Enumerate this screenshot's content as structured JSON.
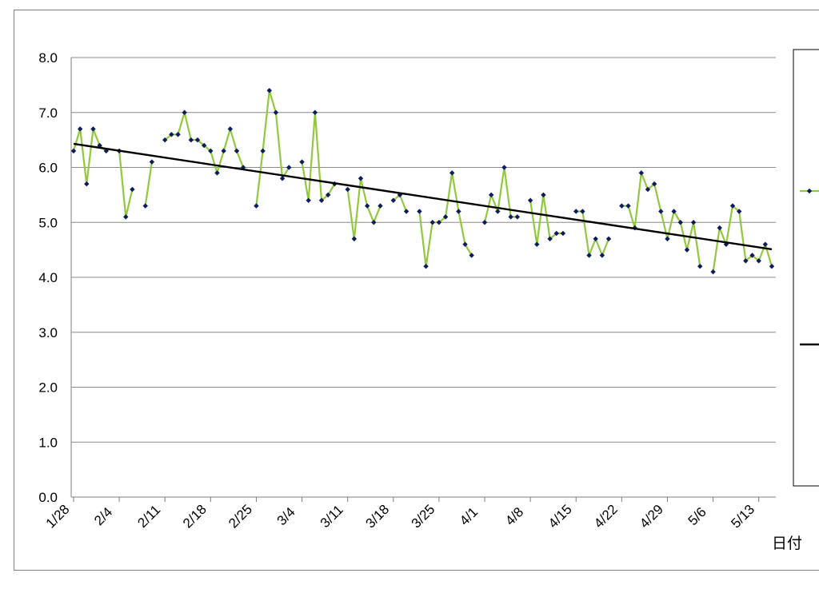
{
  "chart_data": {
    "type": "line",
    "xlabel": "日付",
    "ylabel": "",
    "ylim": [
      0,
      8
    ],
    "yticks": [
      "0.0",
      "1.0",
      "2.0",
      "3.0",
      "4.0",
      "5.0",
      "6.0",
      "7.0",
      "8.0"
    ],
    "xticks": [
      "1/28",
      "2/4",
      "2/11",
      "2/18",
      "2/25",
      "3/4",
      "3/11",
      "3/18",
      "3/25",
      "4/1",
      "4/8",
      "4/15",
      "4/22",
      "4/29",
      "5/6",
      "5/13"
    ],
    "grid": true,
    "legend_position": "right",
    "series": [
      {
        "color": "#92c83e",
        "marker_color": "#0d1d5c",
        "values": [
          6.3,
          6.7,
          5.7,
          6.7,
          6.4,
          6.3,
          null,
          6.3,
          5.1,
          5.6,
          null,
          5.3,
          6.1,
          null,
          6.5,
          6.6,
          6.6,
          7.0,
          6.5,
          6.5,
          6.4,
          6.3,
          5.9,
          6.3,
          6.7,
          6.3,
          6.0,
          null,
          5.3,
          6.3,
          7.4,
          7.0,
          5.8,
          6.0,
          null,
          6.1,
          5.4,
          7.0,
          5.4,
          5.5,
          5.7,
          null,
          5.6,
          4.7,
          5.8,
          5.3,
          5.0,
          5.3,
          null,
          5.4,
          5.5,
          5.2,
          null,
          5.2,
          4.2,
          5.0,
          5.0,
          5.1,
          5.9,
          5.2,
          4.6,
          4.4,
          null,
          5.0,
          5.5,
          5.2,
          6.0,
          5.1,
          5.1,
          null,
          5.4,
          4.6,
          5.5,
          4.7,
          4.8,
          4.8,
          null,
          5.2,
          5.2,
          4.4,
          4.7,
          4.4,
          4.7,
          null,
          5.3,
          5.3,
          4.9,
          5.9,
          5.6,
          5.7,
          5.2,
          4.7,
          5.2,
          5.0,
          4.5,
          5.0,
          4.2,
          null,
          4.1,
          4.9,
          4.6,
          5.3,
          5.2,
          4.3,
          4.4,
          4.3,
          4.6,
          4.2
        ]
      },
      {
        "color": "#000000",
        "type": "trend",
        "values": [
          6.43,
          4.51
        ]
      }
    ]
  }
}
